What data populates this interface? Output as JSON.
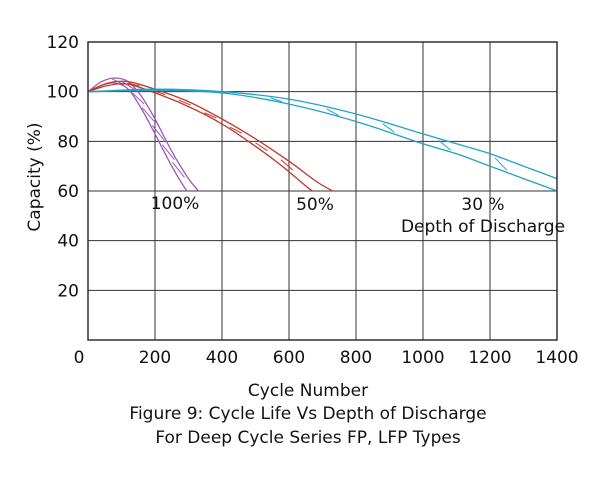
{
  "chart_data": {
    "type": "line",
    "title": "",
    "xlabel": "Cycle Number",
    "ylabel": "Capacity  (%)",
    "xlim": [
      0,
      1400
    ],
    "ylim": [
      0,
      120
    ],
    "x_ticks": [
      "0",
      "200",
      "400",
      "600",
      "800",
      "1000",
      "1200",
      "1400"
    ],
    "y_ticks": [
      "20",
      "40",
      "60",
      "80",
      "100",
      "120"
    ],
    "grid": true,
    "series": [
      {
        "name": "100%",
        "color": "#9b59b6",
        "upper": [
          [
            0,
            100
          ],
          [
            40,
            104
          ],
          [
            80,
            105.5
          ],
          [
            120,
            104
          ],
          [
            160,
            98
          ],
          [
            200,
            89
          ],
          [
            250,
            76
          ],
          [
            300,
            65
          ],
          [
            330,
            60
          ]
        ],
        "lower": [
          [
            0,
            100
          ],
          [
            40,
            102.5
          ],
          [
            80,
            103.5
          ],
          [
            120,
            101
          ],
          [
            160,
            93
          ],
          [
            200,
            83
          ],
          [
            250,
            70
          ],
          [
            290,
            61
          ],
          [
            300,
            60
          ]
        ]
      },
      {
        "name": "50%",
        "color": "#c0392b",
        "upper": [
          [
            0,
            100
          ],
          [
            60,
            103.5
          ],
          [
            120,
            104
          ],
          [
            200,
            101
          ],
          [
            300,
            96
          ],
          [
            400,
            89
          ],
          [
            500,
            81
          ],
          [
            600,
            72
          ],
          [
            680,
            64
          ],
          [
            730,
            60
          ]
        ],
        "lower": [
          [
            0,
            100
          ],
          [
            60,
            102.5
          ],
          [
            120,
            103
          ],
          [
            200,
            99.5
          ],
          [
            300,
            94
          ],
          [
            400,
            87
          ],
          [
            500,
            78
          ],
          [
            580,
            70
          ],
          [
            650,
            62
          ],
          [
            670,
            60
          ]
        ]
      },
      {
        "name": "30 %",
        "color": "#1fa3c6",
        "upper": [
          [
            0,
            100
          ],
          [
            200,
            101
          ],
          [
            400,
            100
          ],
          [
            600,
            97
          ],
          [
            800,
            91
          ],
          [
            1000,
            83
          ],
          [
            1100,
            79
          ],
          [
            1200,
            75
          ],
          [
            1300,
            70
          ],
          [
            1400,
            65
          ]
        ],
        "lower": [
          [
            0,
            100
          ],
          [
            200,
            100.5
          ],
          [
            400,
            99.5
          ],
          [
            600,
            95
          ],
          [
            800,
            88
          ],
          [
            1000,
            79
          ],
          [
            1100,
            75
          ],
          [
            1200,
            70
          ],
          [
            1300,
            65
          ],
          [
            1400,
            60
          ]
        ]
      }
    ],
    "annotations": {
      "label_100": "100%",
      "label_50": "50%",
      "label_30": "30 %",
      "label_dod": "Depth of Discharge"
    }
  },
  "caption": {
    "line1": "Figure 9: Cycle Life Vs Depth of Discharge",
    "line2": "For Deep Cycle Series FP,  LFP Types"
  }
}
